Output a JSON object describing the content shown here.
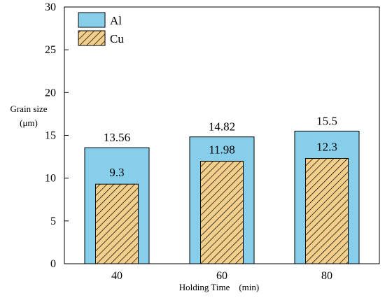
{
  "chart_data": {
    "type": "bar",
    "categories": [
      "40",
      "60",
      "80"
    ],
    "series": [
      {
        "name": "Al",
        "values": [
          13.56,
          14.82,
          15.5
        ],
        "labels": [
          "13.56",
          "14.82",
          "15.5"
        ],
        "color": "#87ceeb"
      },
      {
        "name": "Cu",
        "values": [
          9.3,
          11.98,
          12.3
        ],
        "labels": [
          "9.3",
          "11.98",
          "12.3"
        ],
        "color": "#f3cf8b"
      }
    ],
    "title": "",
    "xlabel": "Holding Time　(min)",
    "ylabel_line1": "Grain size",
    "ylabel_line2": "(μm)",
    "ylim": [
      0,
      30
    ],
    "yticks": [
      "0",
      "5",
      "10",
      "15",
      "20",
      "25",
      "30"
    ],
    "grid": false,
    "legend_position": "top-left",
    "overlay": "Cu bars drawn inside Al bars"
  }
}
